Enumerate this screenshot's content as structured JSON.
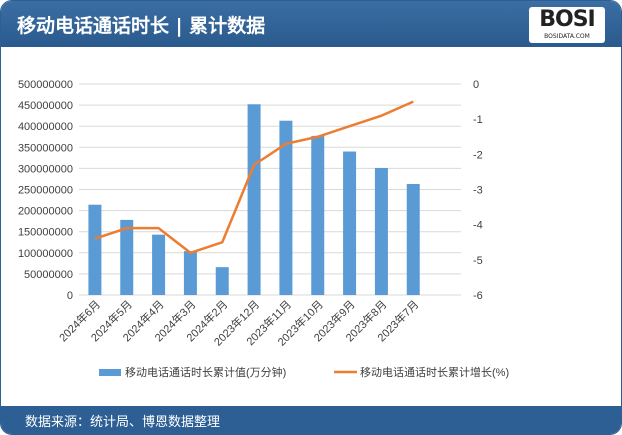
{
  "header": {
    "title": "移动电话通话时长 | 累计数据",
    "logo_text": "BOSI",
    "logo_sub": "BOSIDATA.COM"
  },
  "footer": {
    "source": "数据来源：统计局、博恩数据整理"
  },
  "colors": {
    "bar": "#5b9bd5",
    "line": "#ed7d31",
    "header": "#2e5f94"
  },
  "chart_data": {
    "type": "bar+line",
    "categories": [
      "2024年6月",
      "2024年5月",
      "2024年4月",
      "2024年3月",
      "2024年2月",
      "2023年12月",
      "2023年11月",
      "2023年10月",
      "2023年9月",
      "2023年8月",
      "2023年7月"
    ],
    "series": [
      {
        "name": "移动电话通话时长累计值(万分钟)",
        "type": "bar",
        "axis": "left",
        "values": [
          214000000,
          178000000,
          143000000,
          104000000,
          66000000,
          452000000,
          413000000,
          377000000,
          340000000,
          301000000,
          263000000
        ]
      },
      {
        "name": "移动电话通话时长累计增长(%)",
        "type": "line",
        "axis": "right",
        "values": [
          -4.4,
          -4.1,
          -4.1,
          -4.8,
          -4.5,
          -2.3,
          -1.7,
          -1.5,
          -1.2,
          -0.9,
          -0.5
        ]
      }
    ],
    "y_left": {
      "range": [
        0,
        500000000
      ],
      "ticks": [
        "0",
        "50000000",
        "100000000",
        "150000000",
        "200000000",
        "250000000",
        "300000000",
        "350000000",
        "400000000",
        "450000000",
        "500000000"
      ]
    },
    "y_right": {
      "range": [
        -6,
        0
      ],
      "ticks": [
        "-6",
        "-5",
        "-4",
        "-3",
        "-2",
        "-1",
        "0"
      ]
    },
    "grid": true,
    "legend": "bottom"
  }
}
